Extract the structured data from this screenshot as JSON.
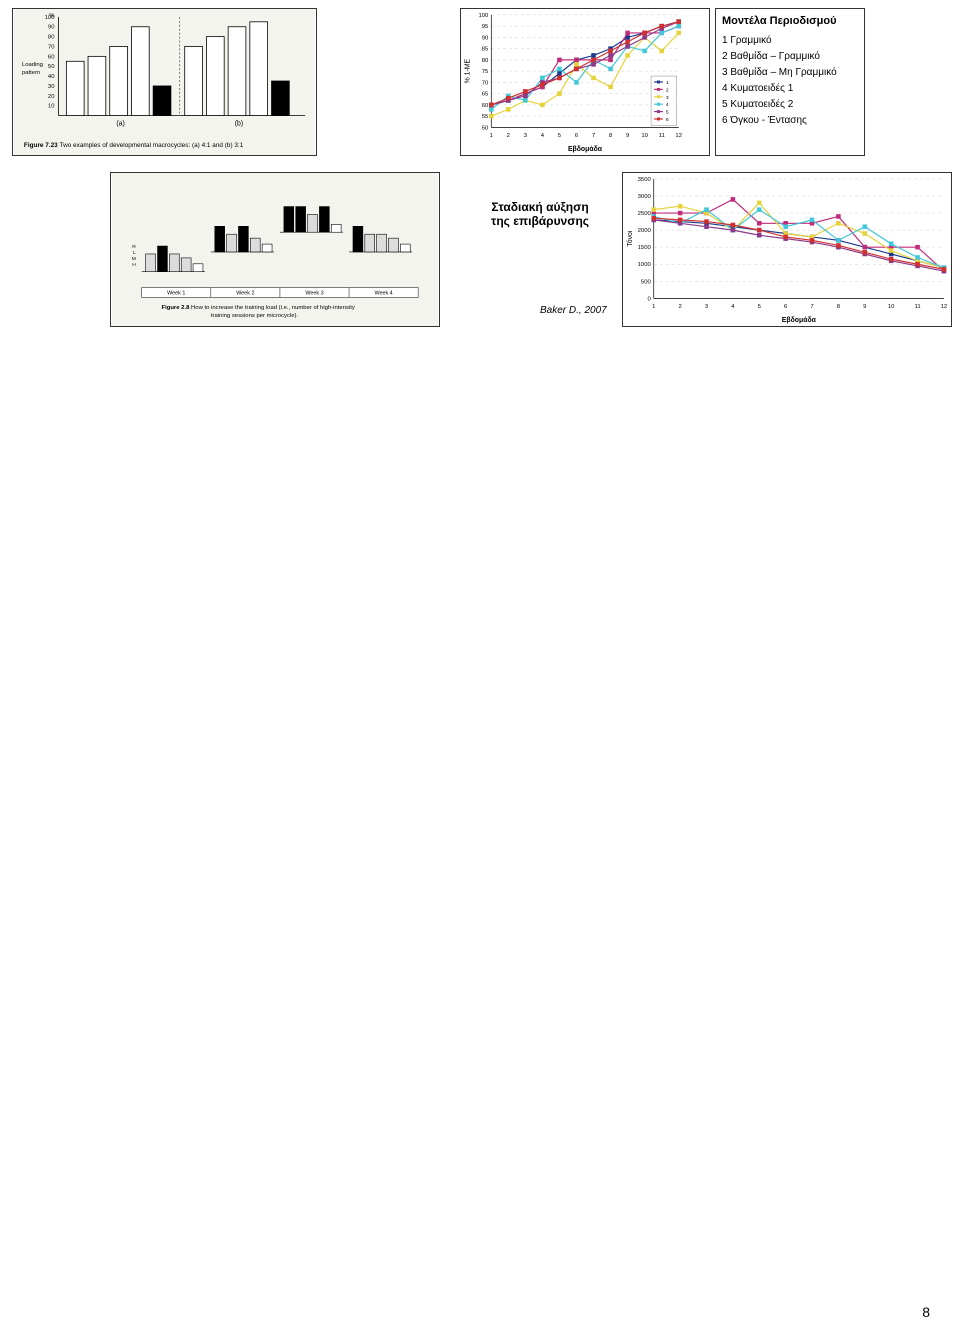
{
  "fig723": {
    "type": "bar",
    "yLabel": "%",
    "yTicks": [
      10,
      20,
      30,
      40,
      50,
      60,
      70,
      80,
      90,
      100
    ],
    "sideLabel": "Loading pattern",
    "groupLabels": [
      "(a)",
      "(b)"
    ],
    "bars_a": [
      55,
      60,
      70,
      90,
      30
    ],
    "bars_b": [
      70,
      80,
      90,
      95,
      35
    ],
    "fills_a": [
      "#ffffff",
      "#ffffff",
      "#ffffff",
      "#ffffff",
      "#000000"
    ],
    "fills_b": [
      "#ffffff",
      "#ffffff",
      "#ffffff",
      "#ffffff",
      "#000000"
    ],
    "caption": "Figure 7.23   Two examples of developmental macrocycles: (a) 4:1 and (b) 3:1",
    "bar_stroke": "#000000",
    "bg": "#f4f4ee"
  },
  "linechart": {
    "type": "line",
    "yLabel": "% 1-ΜΕ",
    "xLabel": "Εβδομάδα",
    "yMin": 50,
    "yMax": 100,
    "yStep": 5,
    "xMin": 1,
    "xMax": 12,
    "xStep": 1,
    "grid_color": "#d0d0d0",
    "bg": "#ffffff",
    "legend": {
      "labels": [
        "1",
        "2",
        "3",
        "4",
        "5",
        "6"
      ]
    },
    "series": [
      {
        "name": "1",
        "color": "#1a3a8f",
        "marker": "diamond",
        "values": [
          60,
          62,
          65,
          68,
          74,
          80,
          82,
          85,
          90,
          92,
          95,
          97
        ]
      },
      {
        "name": "2",
        "color": "#c22a7a",
        "marker": "square",
        "values": [
          60,
          62,
          65,
          68,
          80,
          80,
          80,
          80,
          92,
          92,
          92,
          95
        ]
      },
      {
        "name": "3",
        "color": "#e6d23a",
        "marker": "triangle",
        "values": [
          55,
          58,
          62,
          60,
          65,
          78,
          72,
          68,
          82,
          90,
          84,
          92
        ]
      },
      {
        "name": "4",
        "color": "#40c8d8",
        "marker": "x",
        "values": [
          58,
          64,
          62,
          72,
          76,
          70,
          80,
          76,
          86,
          84,
          92,
          95
        ]
      },
      {
        "name": "5",
        "color": "#8a3a8a",
        "marker": "star",
        "values": [
          60,
          62,
          64,
          70,
          72,
          76,
          78,
          82,
          86,
          90,
          94,
          97
        ]
      },
      {
        "name": "6",
        "color": "#d03030",
        "marker": "circle",
        "values": [
          60,
          63,
          66,
          69,
          72,
          76,
          80,
          84,
          88,
          92,
          95,
          97
        ]
      }
    ]
  },
  "models": {
    "title": "Μοντέλα Περιοδισμού",
    "items": [
      "1 Γραμμικό",
      "2 Βαθμίδα – Γραμμικό",
      "3 Βαθμίδα – Μη Γραμμικό",
      "4 Κυματοειδές 1",
      "5 Κυματοειδές 2",
      "6 Όγκου - Έντασης"
    ]
  },
  "fig28": {
    "type": "bar",
    "caption": "Figure 2.8   How to increase the training load (i.e., number of high-intensity training sessions per microcycle).",
    "weekLabels": [
      "Week 1",
      "Week 2",
      "Week 3",
      "Week 4"
    ],
    "intensityLabels": [
      "H",
      "M",
      "L",
      "R"
    ],
    "weeks": [
      {
        "yOffset": 60,
        "bars": [
          {
            "fill": "#dcdcdc",
            "h": 18,
            "label": "M"
          },
          {
            "fill": "#000000",
            "h": 26,
            "label": "H"
          },
          {
            "fill": "#dcdcdc",
            "h": 18,
            "label": "M"
          },
          {
            "fill": "#dcdcdc",
            "h": 14,
            "label": "L"
          },
          {
            "fill": "#ffffff",
            "h": 8,
            "label": "R"
          }
        ]
      },
      {
        "yOffset": 40,
        "bars": [
          {
            "fill": "#000000",
            "h": 26,
            "label": "H"
          },
          {
            "fill": "#dcdcdc",
            "h": 18,
            "label": "M"
          },
          {
            "fill": "#000000",
            "h": 26,
            "label": "H"
          },
          {
            "fill": "#dcdcdc",
            "h": 14,
            "label": "L"
          },
          {
            "fill": "#ffffff",
            "h": 8,
            "label": "R"
          }
        ]
      },
      {
        "yOffset": 20,
        "bars": [
          {
            "fill": "#000000",
            "h": 26,
            "label": "H"
          },
          {
            "fill": "#000000",
            "h": 26,
            "label": "H"
          },
          {
            "fill": "#dcdcdc",
            "h": 18,
            "label": "M"
          },
          {
            "fill": "#000000",
            "h": 26,
            "label": "H"
          },
          {
            "fill": "#ffffff",
            "h": 8,
            "label": "R"
          }
        ]
      },
      {
        "yOffset": 40,
        "bars": [
          {
            "fill": "#000000",
            "h": 26,
            "label": "H"
          },
          {
            "fill": "#dcdcdc",
            "h": 18,
            "label": "M"
          },
          {
            "fill": "#dcdcdc",
            "h": 18,
            "label": "M"
          },
          {
            "fill": "#dcdcdc",
            "h": 14,
            "label": "L"
          },
          {
            "fill": "#ffffff",
            "h": 8,
            "label": "R"
          }
        ]
      }
    ],
    "bg": "#f4f4ee",
    "stroke": "#000000"
  },
  "stadtext": {
    "line1": "Σταδιακή αύξηση",
    "line2": "της επιβάρυνσης"
  },
  "linechart2": {
    "type": "line",
    "yLabel": "Τόνοι",
    "xLabel": "Εβδομάδα",
    "yMin": 0,
    "yMax": 3500,
    "yStep": 500,
    "xMin": 1,
    "xMax": 12,
    "xStep": 1,
    "grid_color": "#d0d0d0",
    "bg": "#ffffff",
    "series": [
      {
        "name": "1",
        "color": "#1a3a8f",
        "marker": "diamond",
        "values": [
          2300,
          2250,
          2200,
          2100,
          2000,
          1900,
          1800,
          1700,
          1500,
          1300,
          1100,
          900
        ]
      },
      {
        "name": "2",
        "color": "#c22a7a",
        "marker": "square",
        "values": [
          2500,
          2500,
          2500,
          2900,
          2200,
          2200,
          2200,
          2400,
          1500,
          1500,
          1500,
          800
        ]
      },
      {
        "name": "3",
        "color": "#e6d23a",
        "marker": "triangle",
        "values": [
          2600,
          2700,
          2500,
          2000,
          2800,
          1900,
          1800,
          2200,
          1900,
          1400,
          1100,
          900
        ]
      },
      {
        "name": "4",
        "color": "#40c8d8",
        "marker": "x",
        "values": [
          2400,
          2200,
          2600,
          2000,
          2600,
          2100,
          2300,
          1700,
          2100,
          1600,
          1200,
          900
        ]
      },
      {
        "name": "5",
        "color": "#8a3a8a",
        "marker": "star",
        "values": [
          2300,
          2200,
          2100,
          2000,
          1850,
          1750,
          1650,
          1500,
          1300,
          1100,
          950,
          800
        ]
      },
      {
        "name": "6",
        "color": "#d03030",
        "marker": "circle",
        "values": [
          2350,
          2300,
          2250,
          2150,
          2000,
          1800,
          1700,
          1550,
          1350,
          1150,
          1000,
          850
        ]
      }
    ]
  },
  "cite": "Baker D., 2007",
  "pagenum": "8"
}
